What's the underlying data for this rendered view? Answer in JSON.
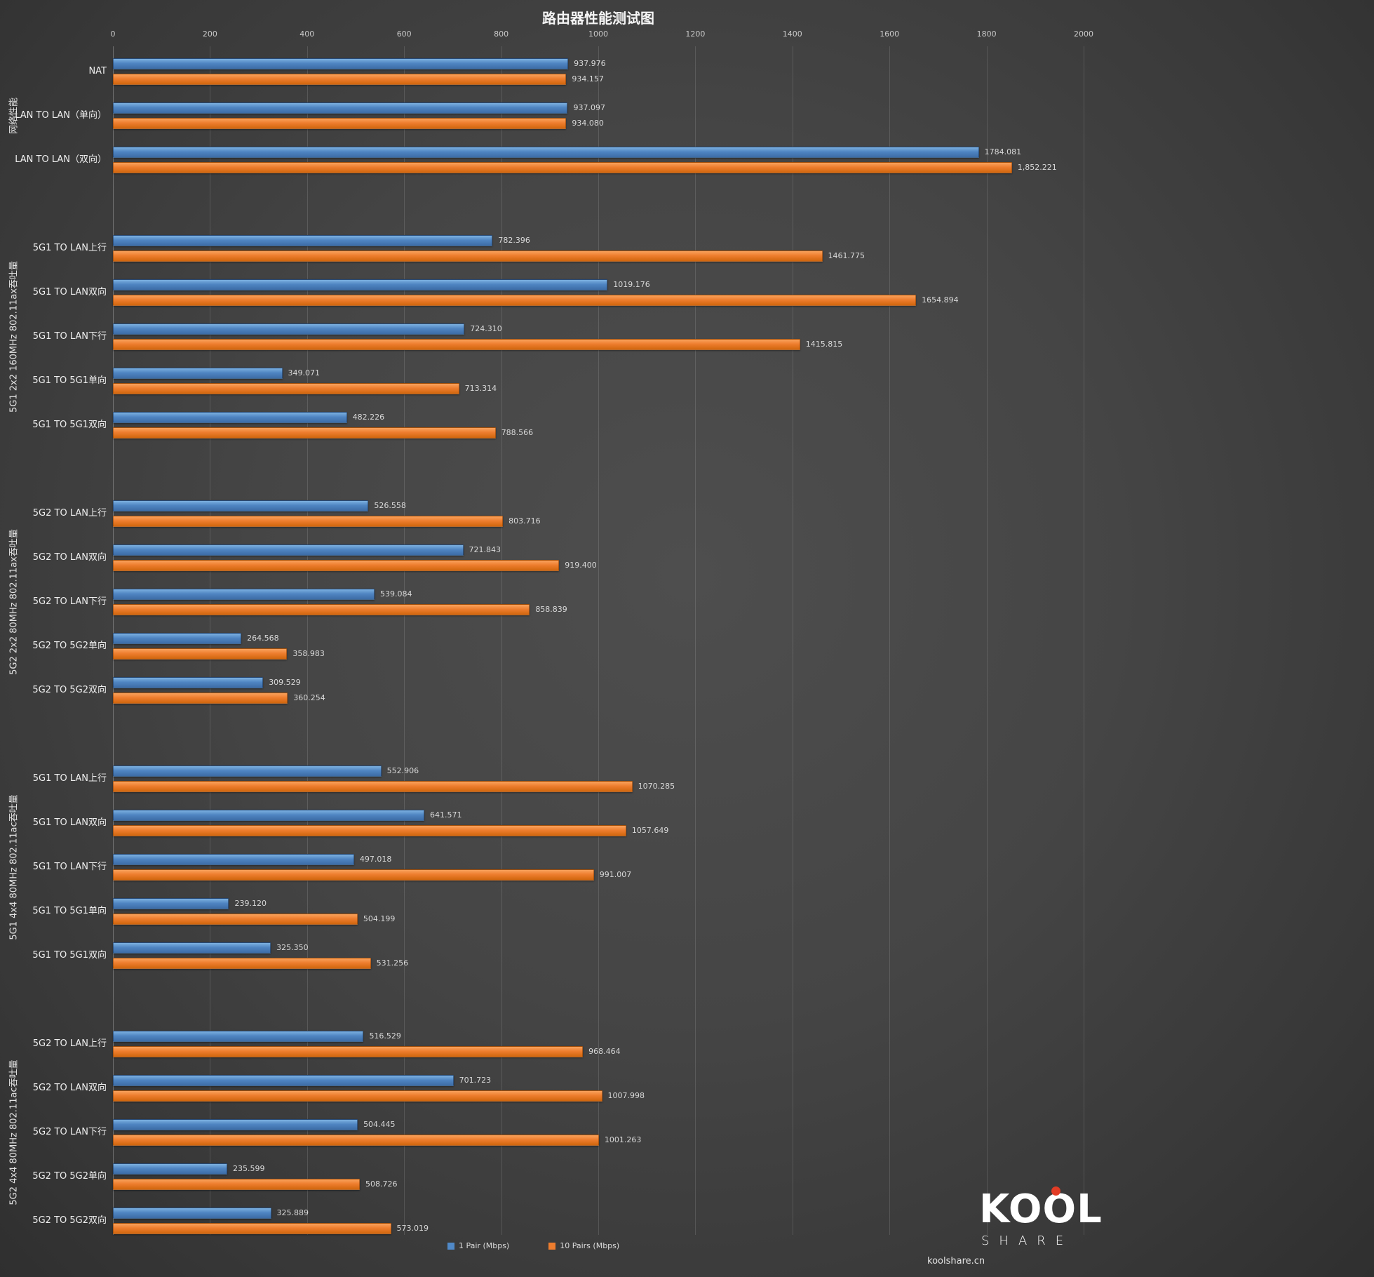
{
  "title": "路由器性能测试图",
  "watermark": {
    "site_text": "koolshare.cn",
    "logo_word_top": "KOOL",
    "logo_word_bottom": "SHARE"
  },
  "chart_data": {
    "type": "bar",
    "orientation": "horizontal",
    "title": "路由器性能测试图",
    "xlim": [
      0,
      2000
    ],
    "x_ticks": [
      0,
      200,
      400,
      600,
      800,
      1000,
      1200,
      1400,
      1600,
      1800,
      2000
    ],
    "grid": true,
    "series_names": [
      "1 Pair (Mbps)",
      "10 Pairs (Mbps)"
    ],
    "colors": {
      "series1": "#5089c8",
      "series2": "#ee7d2e"
    },
    "legend": {
      "position": "bottom",
      "items": [
        {
          "label": "1 Pair (Mbps)",
          "color": "#5089c8"
        },
        {
          "label": "10  Pairs  (Mbps)",
          "color": "#ee7d2e"
        }
      ]
    },
    "groups": [
      {
        "label": "网络性能",
        "rows": [
          {
            "category": "NAT",
            "values": [
              937.976,
              934.157
            ],
            "labels": [
              "937.976",
              "934.157"
            ]
          },
          {
            "category": "LAN TO LAN（单向）",
            "values": [
              937.097,
              934.08
            ],
            "labels": [
              "937.097",
              "934.080"
            ]
          },
          {
            "category": "LAN TO LAN（双向）",
            "values": [
              1784.081,
              1852.221
            ],
            "labels": [
              "1784.081",
              "1,852.221"
            ]
          }
        ]
      },
      {
        "label": "5G1 2x2 160MHz 802.11ax吞吐量",
        "rows": [
          {
            "category": "5G1 TO LAN上行",
            "values": [
              782.396,
              1461.775
            ],
            "labels": [
              "782.396",
              "1461.775"
            ]
          },
          {
            "category": "5G1 TO LAN双向",
            "values": [
              1019.176,
              1654.894
            ],
            "labels": [
              "1019.176",
              "1654.894"
            ]
          },
          {
            "category": "5G1 TO LAN下行",
            "values": [
              724.31,
              1415.815
            ],
            "labels": [
              "724.310",
              "1415.815"
            ]
          },
          {
            "category": "5G1 TO 5G1单向",
            "values": [
              349.071,
              713.314
            ],
            "labels": [
              "349.071",
              "713.314"
            ]
          },
          {
            "category": "5G1 TO 5G1双向",
            "values": [
              482.226,
              788.566
            ],
            "labels": [
              "482.226",
              "788.566"
            ]
          }
        ]
      },
      {
        "label": "5G2 2x2 80MHz 802.11ax吞吐量",
        "rows": [
          {
            "category": "5G2 TO LAN上行",
            "values": [
              526.558,
              803.716
            ],
            "labels": [
              "526.558",
              "803.716"
            ]
          },
          {
            "category": "5G2 TO LAN双向",
            "values": [
              721.843,
              919.4
            ],
            "labels": [
              "721.843",
              "919.400"
            ]
          },
          {
            "category": "5G2 TO LAN下行",
            "values": [
              539.084,
              858.839
            ],
            "labels": [
              "539.084",
              "858.839"
            ]
          },
          {
            "category": "5G2 TO 5G2单向",
            "values": [
              264.568,
              358.983
            ],
            "labels": [
              "264.568",
              "358.983"
            ]
          },
          {
            "category": "5G2 TO 5G2双向",
            "values": [
              309.529,
              360.254
            ],
            "labels": [
              "309.529",
              "360.254"
            ]
          }
        ]
      },
      {
        "label": "5G1 4x4 80MHz 802.11ac吞吐量",
        "rows": [
          {
            "category": "5G1 TO LAN上行",
            "values": [
              552.906,
              1070.285
            ],
            "labels": [
              "552.906",
              "1070.285"
            ]
          },
          {
            "category": "5G1 TO LAN双向",
            "values": [
              641.571,
              1057.649
            ],
            "labels": [
              "641.571",
              "1057.649"
            ]
          },
          {
            "category": "5G1 TO LAN下行",
            "values": [
              497.018,
              991.007
            ],
            "labels": [
              "497.018",
              "991.007"
            ]
          },
          {
            "category": "5G1 TO 5G1单向",
            "values": [
              239.12,
              504.199
            ],
            "labels": [
              "239.120",
              "504.199"
            ]
          },
          {
            "category": "5G1 TO 5G1双向",
            "values": [
              325.35,
              531.256
            ],
            "labels": [
              "325.350",
              "531.256"
            ]
          }
        ]
      },
      {
        "label": "5G2 4x4 80MHz 802.11ac吞吐量",
        "rows": [
          {
            "category": "5G2 TO LAN上行",
            "values": [
              516.529,
              968.464
            ],
            "labels": [
              "516.529",
              "968.464"
            ]
          },
          {
            "category": "5G2 TO LAN双向",
            "values": [
              701.723,
              1007.998
            ],
            "labels": [
              "701.723",
              "1007.998"
            ]
          },
          {
            "category": "5G2 TO LAN下行",
            "values": [
              504.445,
              1001.263
            ],
            "labels": [
              "504.445",
              "1001.263"
            ]
          },
          {
            "category": "5G2 TO 5G2单向",
            "values": [
              235.599,
              508.726
            ],
            "labels": [
              "235.599",
              "508.726"
            ]
          },
          {
            "category": "5G2 TO 5G2双向",
            "values": [
              325.889,
              573.019
            ],
            "labels": [
              "325.889",
              "573.019"
            ]
          }
        ]
      }
    ]
  }
}
